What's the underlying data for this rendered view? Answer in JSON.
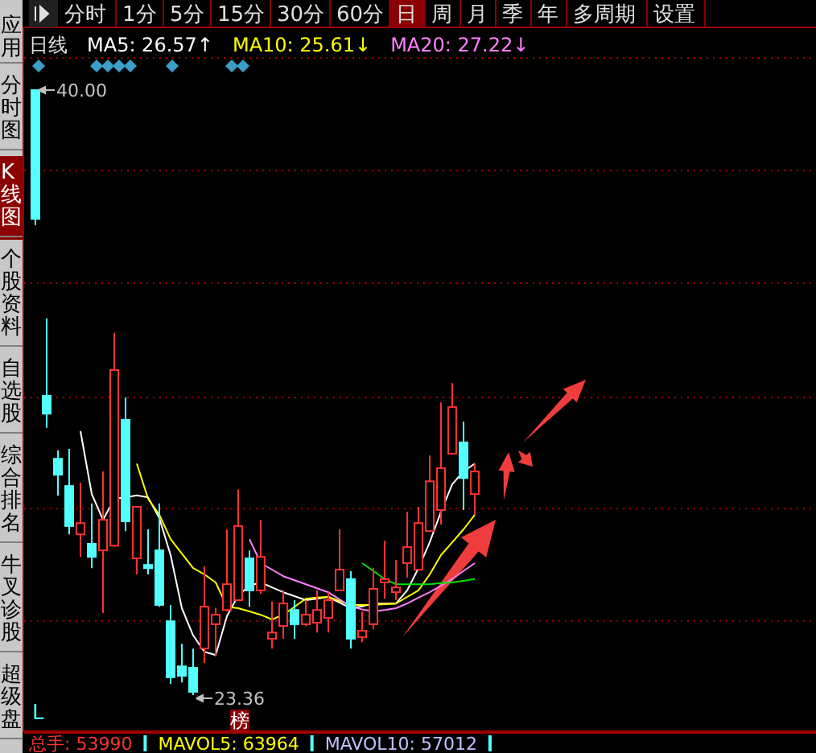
{
  "chart_data": {
    "type": "candlestick",
    "title": "日线",
    "categories": [
      null,
      null,
      null,
      null,
      null,
      null,
      null,
      null,
      null,
      null,
      null,
      null,
      null,
      null,
      null,
      null,
      null,
      null,
      null,
      null,
      null,
      null,
      null,
      null,
      null,
      null,
      null,
      null,
      null,
      null,
      null,
      null,
      null,
      null,
      null,
      null,
      null,
      null,
      null,
      null
    ],
    "ohlc": [
      [
        40.0,
        40.0,
        36.28,
        36.46
      ],
      [
        31.59,
        33.72,
        30.71,
        31.1
      ],
      [
        29.86,
        30.09,
        28.85,
        29.42
      ],
      [
        29.11,
        30.13,
        27.78,
        28.01
      ],
      [
        27.78,
        29.2,
        27.16,
        28.09
      ],
      [
        27.52,
        28.63,
        26.85,
        27.16
      ],
      [
        27.34,
        29.51,
        25.62,
        28.18
      ],
      [
        27.47,
        33.32,
        27.47,
        32.3
      ],
      [
        30.93,
        31.55,
        27.87,
        28.14
      ],
      [
        27.12,
        28.54,
        26.68,
        28.54
      ],
      [
        26.94,
        27.92,
        26.68,
        26.85
      ],
      [
        27.34,
        28.63,
        25.79,
        25.84
      ],
      [
        25.39,
        25.84,
        23.67,
        23.85
      ],
      [
        24.15,
        24.77,
        23.71,
        23.89
      ],
      [
        24.11,
        24.64,
        23.36,
        23.45
      ],
      [
        24.64,
        26.9,
        24.24,
        25.79
      ],
      [
        25.31,
        25.75,
        24.42,
        25.57
      ],
      [
        25.7,
        27.92,
        25.66,
        26.41
      ],
      [
        25.97,
        29.02,
        25.97,
        28.01
      ],
      [
        27.12,
        27.34,
        25.79,
        26.24
      ],
      [
        26.24,
        28.18,
        26.15,
        27.16
      ],
      [
        24.91,
        25.93,
        24.64,
        25.08
      ],
      [
        25.26,
        26.24,
        24.91,
        25.88
      ],
      [
        25.7,
        25.97,
        24.91,
        25.31
      ],
      [
        25.31,
        25.97,
        25.26,
        25.57
      ],
      [
        25.35,
        26.24,
        25.08,
        25.7
      ],
      [
        25.48,
        26.19,
        25.08,
        25.97
      ],
      [
        26.24,
        27.92,
        26.24,
        26.81
      ],
      [
        26.55,
        26.77,
        24.64,
        24.91
      ],
      [
        24.95,
        25.66,
        24.82,
        25.13
      ],
      [
        25.31,
        26.85,
        25.17,
        26.28
      ],
      [
        26.46,
        27.61,
        26.01,
        26.55
      ],
      [
        26.19,
        27.08,
        25.97,
        26.32
      ],
      [
        26.99,
        28.4,
        26.59,
        27.43
      ],
      [
        26.81,
        28.54,
        26.81,
        28.09
      ],
      [
        27.87,
        29.95,
        27.87,
        29.24
      ],
      [
        28.45,
        31.41,
        28.05,
        29.6
      ],
      [
        30.0,
        31.94,
        30.0,
        31.28
      ],
      [
        30.31,
        30.88,
        28.45,
        29.33
      ],
      [
        28.89,
        29.73,
        28.32,
        29.51
      ]
    ],
    "series": [
      {
        "name": "MA5: 26.57↑",
        "type": "line",
        "color": "#ffffff",
        "values": [
          null,
          null,
          null,
          null,
          30.62,
          28.89,
          28.18,
          28.76,
          28.8,
          28.85,
          28.8,
          28.23,
          27.21,
          25.75,
          25.0,
          24.55,
          24.46,
          25.53,
          26.1,
          26.37,
          26.46,
          26.32,
          26.19,
          26.08,
          25.97,
          26.01,
          26.06,
          25.9,
          25.75,
          25.8,
          25.88,
          25.88,
          25.88,
          26.24,
          26.85,
          27.56,
          28.4,
          29.16,
          29.51,
          29.73
        ]
      },
      {
        "name": "MA10: 25.61↓",
        "type": "line",
        "color": "#ffff00",
        "values": [
          null,
          null,
          null,
          null,
          null,
          null,
          null,
          null,
          null,
          29.73,
          28.76,
          28.32,
          27.65,
          27.25,
          26.85,
          26.68,
          26.46,
          25.79,
          25.75,
          25.66,
          25.57,
          25.44,
          25.57,
          25.79,
          26.01,
          26.04,
          26.06,
          25.95,
          25.84,
          25.84,
          25.84,
          25.86,
          25.88,
          26.06,
          26.24,
          26.68,
          27.21,
          27.56,
          27.92,
          28.32
        ]
      },
      {
        "name": "MA20: 27.22↓",
        "type": "line",
        "color": "#ff80ff",
        "values": [
          null,
          null,
          null,
          null,
          null,
          null,
          null,
          null,
          null,
          null,
          null,
          null,
          null,
          null,
          null,
          null,
          null,
          null,
          null,
          27.65,
          26.99,
          26.81,
          26.63,
          26.52,
          26.41,
          26.3,
          26.19,
          25.99,
          25.79,
          25.72,
          25.66,
          25.7,
          25.75,
          25.88,
          26.04,
          26.19,
          26.37,
          26.55,
          26.77,
          26.99
        ]
      },
      {
        "type": "line",
        "color": "#00e000",
        "values": [
          null,
          null,
          null,
          null,
          null,
          null,
          null,
          null,
          null,
          null,
          null,
          null,
          null,
          null,
          null,
          null,
          null,
          null,
          null,
          null,
          null,
          null,
          null,
          null,
          null,
          null,
          null,
          null,
          null,
          26.99,
          26.77,
          26.55,
          26.41,
          26.41,
          26.41,
          26.41,
          26.44,
          26.46,
          26.5,
          26.55
        ]
      }
    ],
    "legend": "top",
    "grid": "y",
    "yticks": [
      {
        "value": 37.79,
        "label": null
      },
      {
        "value": 34.69,
        "label": null
      },
      {
        "value": 31.55,
        "label": null
      },
      {
        "value": 28.49,
        "label": null
      },
      {
        "value": 25.4,
        "label": null
      }
    ],
    "annotations": [
      "40.00",
      "23.36",
      "分时",
      "1分",
      "5分",
      "15分",
      "30分",
      "60分",
      "日",
      "周",
      "月",
      "季",
      "年",
      "多周期",
      "设置",
      "应用",
      "分时图",
      "K线图",
      "个股资料",
      "自选股",
      "综合排名",
      "牛叉诊股",
      "超级盘",
      "L",
      "榜",
      "总手: 53990",
      "MAVOL5: 63964",
      "MAVOL10: 57012"
    ]
  }
}
